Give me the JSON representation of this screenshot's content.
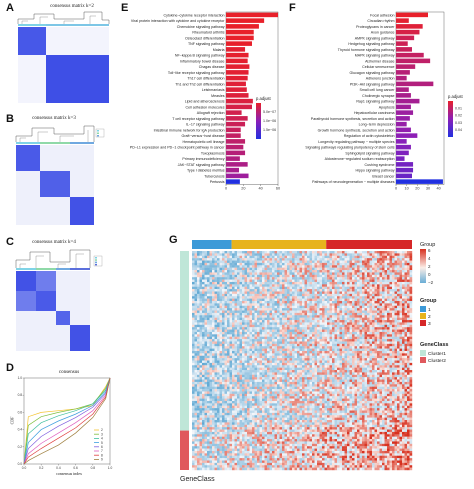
{
  "panels": {
    "A": {
      "letter": "A",
      "title": "consensus matrix  k=2"
    },
    "B": {
      "letter": "B",
      "title": "consensus matrix  k=3"
    },
    "C": {
      "letter": "C",
      "title": "consensus matrix  k=4"
    },
    "D": {
      "letter": "D",
      "title": "consensus",
      "xlabel": "consensus index",
      "ylabel": "CDF"
    },
    "E": {
      "letter": "E"
    },
    "F": {
      "letter": "F"
    },
    "G": {
      "letter": "G",
      "footer": "GeneClass"
    }
  },
  "chart_data": [
    {
      "panel": "E",
      "type": "bar",
      "orientation": "horizontal",
      "categories": [
        "Cytokine−cytokine receptor interaction",
        "Viral protein interaction with cytokine and cytokine receptor",
        "Chemokine signaling pathway",
        "Rheumatoid arthritis",
        "Osteoclast differentiation",
        "TNF signaling pathway",
        "Malaria",
        "NF−kappa B signaling pathway",
        "Inflammatory bowel disease",
        "Chagas disease",
        "Toll−like receptor signaling pathway",
        "Th17 cell differentiation",
        "Th1 and Th2 cell differentiation",
        "Leishmaniasis",
        "Measles",
        "Lipid and atherosclerosis",
        "Cell adhesion molecules",
        "Allograft rejection",
        "T cell receptor signaling pathway",
        "IL−17 signaling pathway",
        "Intestinal immune network for IgA production",
        "Graft−versus−host disease",
        "Hematopoietic cell lineage",
        "PD−L1 expression and PD−1 checkpoint pathway in cancer",
        "Toxoplasmosis",
        "Primary immunodeficiency",
        "JAK−STAT signaling pathway",
        "Type I diabetes mellitus",
        "Tuberculosis",
        "Pertussis"
      ],
      "values": [
        60,
        44,
        38,
        32,
        32,
        30,
        22,
        26,
        25,
        27,
        26,
        25,
        23,
        24,
        26,
        31,
        30,
        18,
        25,
        22,
        17,
        17,
        22,
        20,
        22,
        16,
        25,
        15,
        26,
        16
      ],
      "padj": [
        2e-12,
        3e-10,
        1e-09,
        2e-09,
        4e-09,
        1e-08,
        5e-08,
        3e-08,
        4e-08,
        5e-08,
        6e-08,
        7e-08,
        9e-08,
        1e-07,
        1.2e-07,
        1.5e-07,
        2e-07,
        2.5e-07,
        2.8e-07,
        3.2e-07,
        3.5e-07,
        4e-07,
        4.5e-07,
        5e-07,
        5.5e-07,
        6e-07,
        6.5e-07,
        7e-07,
        8e-07,
        2e-06
      ],
      "xlim": [
        0,
        60
      ],
      "xticks": [
        "0",
        "20",
        "40",
        "60"
      ],
      "legend_title": "p.adjust",
      "legend_ticks": [
        "5.0e−07",
        "1.0e−06",
        "1.5e−06"
      ]
    },
    {
      "panel": "F",
      "type": "bar",
      "orientation": "horizontal",
      "categories": [
        "Focal adhesion",
        "Circadian rhythm",
        "Proteoglycans in cancer",
        "Axon guidance",
        "AMPK signaling pathway",
        "Hedgehog signaling pathway",
        "Thyroid hormone signaling pathway",
        "MAPK signaling pathway",
        "Alzheimer disease",
        "Cellular senescence",
        "Glucagon signaling pathway",
        "Adherens junction",
        "PI3K−Akt signaling pathway",
        "Small cell lung cancer",
        "Cholinergic synapse",
        "Rap1 signaling pathway",
        "Apoptosis",
        "Hepatocellular carcinoma",
        "Parathyroid hormone synthesis, secretion and action",
        "Long−term depression",
        "Growth hormone synthesis, secretion and action",
        "Regulation of actin cytoskeleton",
        "Longevity regulating pathway − multiple species",
        "Signaling pathways regulating pluripotency of stem cells",
        "Sphingolipid signaling pathway",
        "Aldosterone−regulated sodium reabsorption",
        "Cushing syndrome",
        "Hippo signaling pathway",
        "Breast cancer",
        "Pathways of neurodegeneration − multiple diseases"
      ],
      "values": [
        30,
        12,
        25,
        22,
        17,
        11,
        15,
        26,
        32,
        18,
        13,
        10,
        35,
        12,
        14,
        22,
        14,
        16,
        13,
        10,
        14,
        20,
        10,
        14,
        12,
        8,
        16,
        16,
        15,
        44
      ],
      "padj": [
        0.004,
        0.005,
        0.006,
        0.008,
        0.01,
        0.01,
        0.011,
        0.012,
        0.013,
        0.014,
        0.015,
        0.016,
        0.016,
        0.017,
        0.018,
        0.019,
        0.02,
        0.021,
        0.022,
        0.022,
        0.023,
        0.024,
        0.025,
        0.026,
        0.027,
        0.028,
        0.029,
        0.03,
        0.031,
        0.045
      ],
      "xlim": [
        0,
        45
      ],
      "xticks": [
        "0",
        "10",
        "20",
        "30",
        "40"
      ],
      "legend_title": "p.adjust",
      "legend_ticks": [
        "0.01",
        "0.02",
        "0.03",
        "0.04"
      ]
    },
    {
      "panel": "D",
      "type": "line",
      "title": "consensus",
      "xlabel": "consensus index",
      "ylabel": "CDF",
      "xlim": [
        0,
        1
      ],
      "ylim": [
        0,
        1
      ],
      "xticks": [
        "0.0",
        "0.2",
        "0.4",
        "0.6",
        "0.8",
        "1.0"
      ],
      "yticks": [
        "0.0",
        "0.2",
        "0.4",
        "0.6",
        "0.8",
        "1.0"
      ],
      "series": [
        {
          "name": "2",
          "color": "#f4c430",
          "x": [
            0,
            0.05,
            0.2,
            0.4,
            0.6,
            0.8,
            0.95,
            1
          ],
          "values": [
            0,
            0.55,
            0.6,
            0.62,
            0.64,
            0.68,
            0.9,
            1
          ]
        },
        {
          "name": "3",
          "color": "#7fbf3f",
          "x": [
            0,
            0.05,
            0.2,
            0.4,
            0.6,
            0.8,
            0.95,
            1
          ],
          "values": [
            0,
            0.45,
            0.55,
            0.6,
            0.64,
            0.7,
            0.88,
            1
          ]
        },
        {
          "name": "4",
          "color": "#3fbf9f",
          "x": [
            0,
            0.05,
            0.2,
            0.4,
            0.6,
            0.8,
            0.95,
            1
          ],
          "values": [
            0,
            0.35,
            0.48,
            0.56,
            0.62,
            0.7,
            0.86,
            1
          ]
        },
        {
          "name": "5",
          "color": "#3f9fdf",
          "x": [
            0,
            0.05,
            0.2,
            0.4,
            0.6,
            0.8,
            0.95,
            1
          ],
          "values": [
            0,
            0.25,
            0.4,
            0.5,
            0.58,
            0.68,
            0.84,
            1
          ]
        },
        {
          "name": "6",
          "color": "#7f5fdf",
          "x": [
            0,
            0.05,
            0.2,
            0.4,
            0.6,
            0.8,
            0.95,
            1
          ],
          "values": [
            0,
            0.18,
            0.32,
            0.44,
            0.54,
            0.66,
            0.82,
            1
          ]
        },
        {
          "name": "7",
          "color": "#df5fbf",
          "x": [
            0,
            0.05,
            0.2,
            0.4,
            0.6,
            0.8,
            0.95,
            1
          ],
          "values": [
            0,
            0.12,
            0.24,
            0.36,
            0.48,
            0.62,
            0.8,
            1
          ]
        },
        {
          "name": "8",
          "color": "#df3f3f",
          "x": [
            0,
            0.05,
            0.2,
            0.4,
            0.6,
            0.8,
            0.95,
            1
          ],
          "values": [
            0,
            0.08,
            0.18,
            0.3,
            0.42,
            0.58,
            0.78,
            1
          ]
        },
        {
          "name": "9",
          "color": "#9f7f3f",
          "x": [
            0,
            0.05,
            0.2,
            0.4,
            0.6,
            0.8,
            0.95,
            1
          ],
          "values": [
            0,
            0.04,
            0.12,
            0.22,
            0.36,
            0.54,
            0.76,
            1
          ]
        }
      ]
    },
    {
      "panel": "G",
      "type": "heatmap",
      "legend_title": "Group",
      "legend_ticks": [
        "6",
        "4",
        "2",
        "0",
        "−2"
      ],
      "group_legend_title": "Group",
      "groups": [
        {
          "name": "1",
          "color": "#3c9ad8"
        },
        {
          "name": "2",
          "color": "#e7b31c"
        },
        {
          "name": "3",
          "color": "#d62728"
        }
      ],
      "group_fractions": [
        0.18,
        0.43,
        0.39
      ],
      "geneclass_legend_title": "GeneClass",
      "geneclasses": [
        {
          "name": "Cluster1",
          "color": "#bfe6d8"
        },
        {
          "name": "Cluster2",
          "color": "#e0595d"
        }
      ],
      "geneclass_fractions": [
        0.82,
        0.18
      ]
    }
  ],
  "colors": {
    "bar_red": "#e8202a",
    "bar_purple": "#6b25c9",
    "bar_blue": "#2130e0",
    "matrix_blue": "#3f4fe6",
    "matrix_light": "#e8ecfb",
    "heat_red": "#d7301f",
    "heat_blue": "#6aaed6"
  }
}
